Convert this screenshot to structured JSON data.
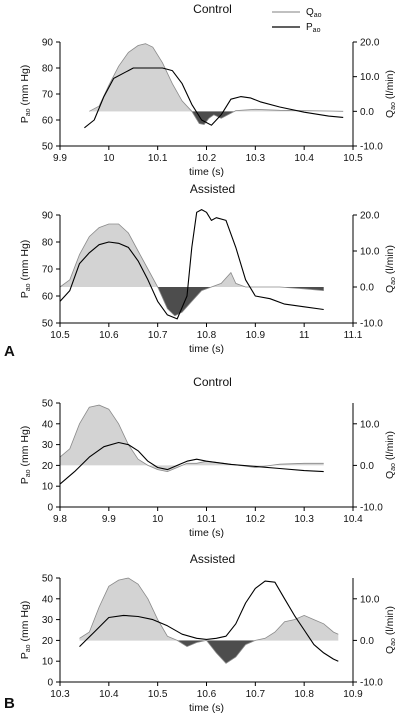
{
  "colors": {
    "flow_fill": "#d3d3d3",
    "flow_stroke": "#8a8a8a",
    "negative_fill": "#4d4d4d",
    "pressure_line": "#000000"
  },
  "panel_letters": [
    "A",
    "B"
  ],
  "legend": {
    "flow": "Q",
    "flow_sub": "ao",
    "pressure": "P",
    "pressure_sub": "ao"
  },
  "chart_data": [
    {
      "type": "line",
      "title": "Control",
      "panel": "A",
      "xlabel": "time (s)",
      "ylabel_left": {
        "main": "P",
        "sub": "ao",
        "unit": " (mm Hg)"
      },
      "ylabel_right": {
        "main": "Q",
        "sub": "ao",
        "unit": " (l/min)"
      },
      "xlim": [
        9.9,
        10.5
      ],
      "xticks": [
        "9.9",
        "10",
        "10.1",
        "10.2",
        "10.3",
        "10.4",
        "10.5"
      ],
      "ylim_left": [
        50,
        90
      ],
      "yticks_left": [
        "50",
        "60",
        "70",
        "80",
        "90"
      ],
      "ylim_right": [
        -10,
        20
      ],
      "yticks_right": [
        "-10.0",
        "0.0",
        "10.0",
        "20.0"
      ],
      "negative_shaded": true,
      "series": [
        {
          "name": "Qao",
          "axis": "right",
          "x": [
            9.96,
            9.98,
            10.0,
            10.02,
            10.04,
            10.06,
            10.075,
            10.09,
            10.11,
            10.13,
            10.15,
            10.17,
            10.185,
            10.195,
            10.205,
            10.215,
            10.23,
            10.26,
            10.3,
            10.35,
            10.4,
            10.45,
            10.48
          ],
          "y": [
            0,
            1.5,
            7.5,
            13,
            17,
            19,
            19.5,
            18.5,
            14,
            8,
            3,
            0,
            -3.5,
            -3.8,
            -2,
            -1,
            -2,
            0.2,
            0.6,
            0.3,
            0.2,
            0.1,
            0
          ]
        },
        {
          "name": "Pao",
          "axis": "left",
          "x": [
            9.95,
            9.97,
            9.99,
            10.01,
            10.03,
            10.05,
            10.07,
            10.09,
            10.11,
            10.13,
            10.15,
            10.17,
            10.19,
            10.21,
            10.23,
            10.25,
            10.27,
            10.29,
            10.31,
            10.35,
            10.4,
            10.45,
            10.48
          ],
          "y": [
            57,
            60,
            69,
            76,
            78,
            80,
            80,
            80,
            80,
            79,
            74,
            66,
            60,
            58,
            62,
            68,
            69,
            68.5,
            67,
            65,
            63,
            61.5,
            61
          ]
        }
      ]
    },
    {
      "type": "line",
      "title": "Assisted",
      "panel": "A",
      "xlabel": "time (s)",
      "ylabel_left": {
        "main": "P",
        "sub": "ao",
        "unit": " (mm Hg)"
      },
      "ylabel_right": {
        "main": "Q",
        "sub": "ao",
        "unit": " (l/min)"
      },
      "xlim": [
        10.5,
        11.1
      ],
      "xticks": [
        "10.5",
        "10.6",
        "10.7",
        "10.8",
        "10.9",
        "11",
        "11.1"
      ],
      "ylim_left": [
        50,
        90
      ],
      "yticks_left": [
        "50",
        "60",
        "70",
        "80",
        "90"
      ],
      "ylim_right": [
        -10,
        20
      ],
      "yticks_right": [
        "-10.0",
        "0.0",
        "10.0",
        "20.0"
      ],
      "negative_shaded": true,
      "series": [
        {
          "name": "Qao",
          "axis": "right",
          "x": [
            10.5,
            10.52,
            10.54,
            10.56,
            10.58,
            10.6,
            10.62,
            10.64,
            10.66,
            10.68,
            10.7,
            10.72,
            10.735,
            10.75,
            10.77,
            10.79,
            10.81,
            10.83,
            10.85,
            10.86,
            10.88,
            10.9,
            10.95,
            11.0,
            11.04
          ],
          "y": [
            0,
            2,
            9,
            14,
            16.5,
            17.5,
            17.5,
            15,
            10,
            5,
            0,
            -6,
            -8,
            -7,
            -4,
            -1,
            0,
            1,
            4,
            1,
            0,
            0,
            0,
            -0.5,
            -1
          ]
        },
        {
          "name": "Pao",
          "axis": "left",
          "x": [
            10.5,
            10.52,
            10.54,
            10.56,
            10.58,
            10.6,
            10.62,
            10.64,
            10.66,
            10.68,
            10.7,
            10.72,
            10.74,
            10.76,
            10.77,
            10.78,
            10.79,
            10.8,
            10.81,
            10.82,
            10.84,
            10.86,
            10.88,
            10.9,
            10.93,
            10.96,
            11.0,
            11.04
          ],
          "y": [
            58,
            62,
            72,
            76,
            79,
            80,
            79.5,
            78,
            73,
            66,
            58,
            53,
            51.5,
            60,
            78,
            91,
            92,
            91,
            88,
            89,
            88,
            78,
            66,
            60,
            59,
            57,
            56,
            55
          ]
        }
      ]
    },
    {
      "type": "line",
      "title": "Control",
      "panel": "B",
      "xlabel": "time (s)",
      "ylabel_left": {
        "main": "P",
        "sub": "ao",
        "unit": " (mm Hg)"
      },
      "ylabel_right": {
        "main": "Q",
        "sub": "ao",
        "unit": " (l/min)"
      },
      "xlim": [
        9.8,
        10.4
      ],
      "xticks": [
        "9.8",
        "9.9",
        "10",
        "10.1",
        "10.2",
        "10.3",
        "10.4"
      ],
      "ylim_left": [
        0,
        50
      ],
      "yticks_left": [
        "0",
        "10",
        "20",
        "30",
        "40",
        "50"
      ],
      "ylim_right": [
        -10,
        15
      ],
      "yticks_right": [
        "-10.0",
        "0.0",
        "10.0"
      ],
      "negative_shaded": false,
      "series": [
        {
          "name": "Qao",
          "axis": "right",
          "x": [
            9.8,
            9.82,
            9.84,
            9.86,
            9.88,
            9.9,
            9.92,
            9.94,
            9.96,
            9.98,
            10.0,
            10.02,
            10.04,
            10.06,
            10.08,
            10.1,
            10.15,
            10.2,
            10.25,
            10.3,
            10.34
          ],
          "y": [
            2,
            4,
            10,
            14,
            14.5,
            13.5,
            10,
            5,
            1.5,
            0,
            -1,
            -1.5,
            -0.5,
            0.5,
            0.5,
            1,
            0.3,
            -0.5,
            0.3,
            0.5,
            0.5
          ]
        },
        {
          "name": "Pao",
          "axis": "left",
          "x": [
            9.8,
            9.83,
            9.86,
            9.89,
            9.92,
            9.94,
            9.96,
            9.98,
            10.0,
            10.02,
            10.04,
            10.06,
            10.08,
            10.1,
            10.15,
            10.2,
            10.25,
            10.3,
            10.34
          ],
          "y": [
            11,
            17,
            24,
            29,
            31,
            30,
            27,
            22,
            19,
            18,
            20,
            22,
            23,
            22,
            20.5,
            19.5,
            18.5,
            17.5,
            17
          ]
        }
      ]
    },
    {
      "type": "line",
      "title": "Assisted",
      "panel": "B",
      "xlabel": "time (s)",
      "ylabel_left": {
        "main": "P",
        "sub": "ao",
        "unit": " (mm Hg)"
      },
      "ylabel_right": {
        "main": "Q",
        "sub": "ao",
        "unit": " (l/min)"
      },
      "xlim": [
        10.3,
        10.9
      ],
      "xticks": [
        "10.3",
        "10.4",
        "10.5",
        "10.6",
        "10.7",
        "10.8",
        "10.9"
      ],
      "ylim_left": [
        0,
        50
      ],
      "yticks_left": [
        "0",
        "10",
        "20",
        "30",
        "40",
        "50"
      ],
      "ylim_right": [
        -10,
        15
      ],
      "yticks_right": [
        "-10.0",
        "0.0",
        "10.0"
      ],
      "negative_shaded": true,
      "series": [
        {
          "name": "Qao",
          "axis": "right",
          "x": [
            10.34,
            10.36,
            10.38,
            10.4,
            10.42,
            10.44,
            10.46,
            10.48,
            10.5,
            10.52,
            10.54,
            10.56,
            10.58,
            10.6,
            10.62,
            10.64,
            10.66,
            10.68,
            10.7,
            10.72,
            10.74,
            10.76,
            10.78,
            10.8,
            10.82,
            10.84,
            10.86,
            10.87
          ],
          "y": [
            0.5,
            2,
            8,
            13,
            14.5,
            15,
            13.5,
            10,
            5,
            1,
            0,
            -1.5,
            -0.5,
            0,
            -3,
            -5.5,
            -4,
            -1,
            0,
            0.5,
            2,
            4.5,
            5,
            6,
            5,
            4,
            2,
            1.5
          ]
        },
        {
          "name": "Pao",
          "axis": "left",
          "x": [
            10.34,
            10.37,
            10.4,
            10.43,
            10.46,
            10.49,
            10.52,
            10.55,
            10.58,
            10.6,
            10.62,
            10.64,
            10.66,
            10.68,
            10.7,
            10.72,
            10.74,
            10.76,
            10.78,
            10.8,
            10.82,
            10.84,
            10.86,
            10.87
          ],
          "y": [
            17,
            24,
            31,
            32,
            31.5,
            30,
            27,
            23,
            21,
            20.5,
            21,
            22,
            28,
            38,
            45,
            48.5,
            48,
            40,
            32,
            25,
            18,
            14,
            11,
            10
          ]
        }
      ]
    }
  ]
}
